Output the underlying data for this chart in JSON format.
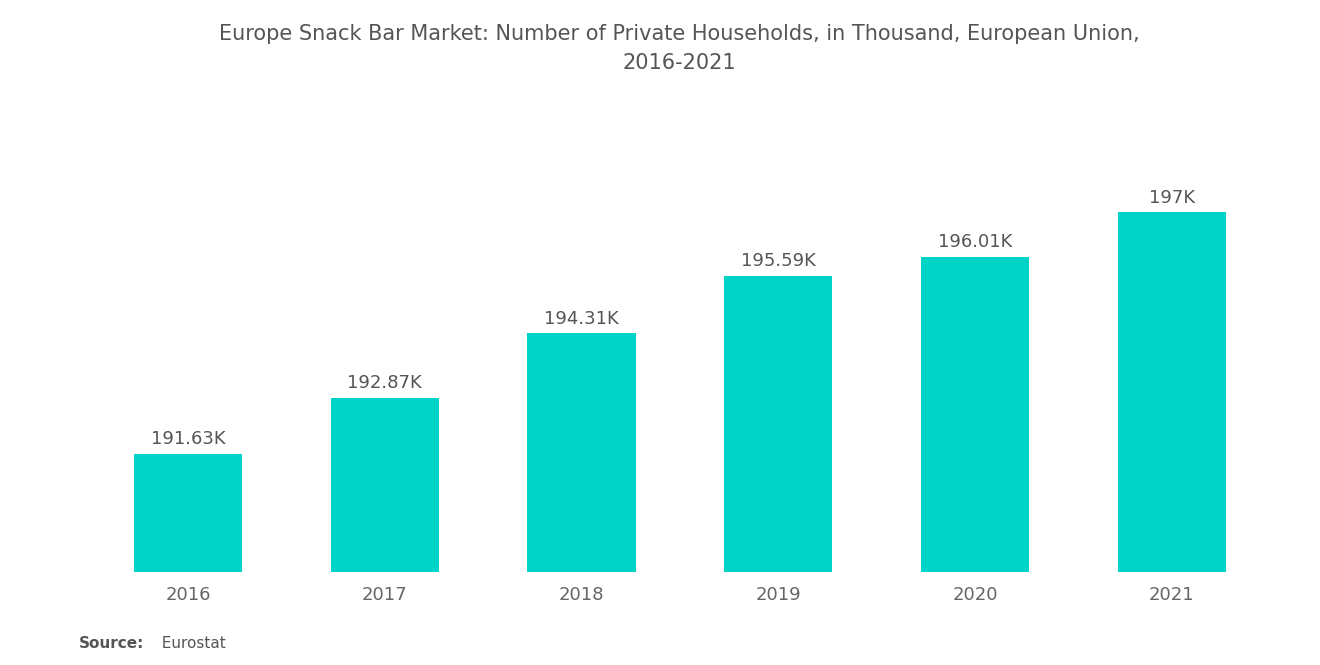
{
  "title": "Europe Snack Bar Market: Number of Private Households, in Thousand, European Union,\n2016-2021",
  "categories": [
    "2016",
    "2017",
    "2018",
    "2019",
    "2020",
    "2021"
  ],
  "values": [
    191.63,
    192.87,
    194.31,
    195.59,
    196.01,
    197.0
  ],
  "labels": [
    "191.63K",
    "192.87K",
    "194.31K",
    "195.59K",
    "196.01K",
    "197K"
  ],
  "bar_color": "#00D4C8",
  "title_color": "#555555",
  "label_color": "#555555",
  "tick_color": "#666666",
  "source_bold": "Source:",
  "source_normal": "  Eurostat",
  "ylim_min": 189.0,
  "ylim_max": 199.5,
  "background_color": "#ffffff",
  "title_fontsize": 15,
  "label_fontsize": 13,
  "tick_fontsize": 13,
  "source_fontsize": 11,
  "bar_width": 0.55
}
